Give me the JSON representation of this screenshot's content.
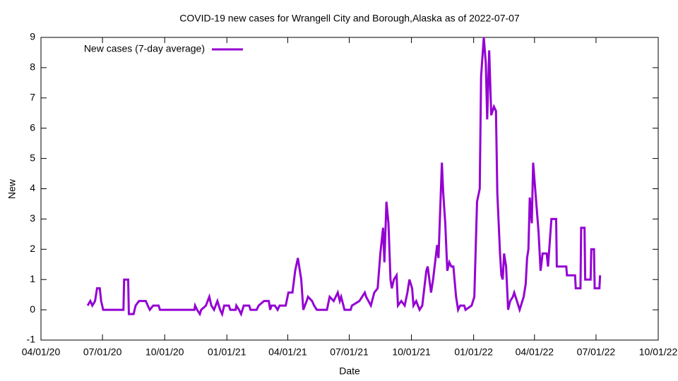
{
  "chart_data": {
    "type": "line",
    "title": "COVID-19 new cases for Wrangell City and Borough,Alaska as of 2022-07-07",
    "x_label": "Date",
    "y_label": "New",
    "legend": "top left",
    "xlim": [
      "2020-04-01",
      "2022-10-01"
    ],
    "xticks": [
      {
        "value": "2020-04-01",
        "label": "04/01/20"
      },
      {
        "value": "2020-07-01",
        "label": "07/01/20"
      },
      {
        "value": "2020-10-01",
        "label": "10/01/20"
      },
      {
        "value": "2021-01-01",
        "label": "01/01/21"
      },
      {
        "value": "2021-04-01",
        "label": "04/01/21"
      },
      {
        "value": "2021-07-01",
        "label": "07/01/21"
      },
      {
        "value": "2021-10-01",
        "label": "10/01/21"
      },
      {
        "value": "2022-01-01",
        "label": "01/01/22"
      },
      {
        "value": "2022-04-01",
        "label": "04/01/22"
      },
      {
        "value": "2022-07-01",
        "label": "07/01/22"
      },
      {
        "value": "2022-10-01",
        "label": "10/01/22"
      }
    ],
    "ylim": [
      -1,
      9
    ],
    "yticks": [
      -1,
      0,
      1,
      2,
      3,
      4,
      5,
      6,
      7,
      8,
      9
    ],
    "x": [
      "2020-06-09",
      "2020-06-13",
      "2020-06-16",
      "2020-06-20",
      "2020-06-23",
      "2020-06-27",
      "2020-06-29",
      "2020-07-02",
      "2020-08-01",
      "2020-08-02",
      "2020-08-08",
      "2020-08-09",
      "2020-08-16",
      "2020-08-19",
      "2020-08-24",
      "2020-09-03",
      "2020-09-06",
      "2020-09-09",
      "2020-09-14",
      "2020-09-22",
      "2020-09-24",
      "2020-11-14",
      "2020-11-15",
      "2020-11-18",
      "2020-11-22",
      "2020-11-24",
      "2020-12-01",
      "2020-12-06",
      "2020-12-09",
      "2020-12-13",
      "2020-12-18",
      "2020-12-22",
      "2020-12-25",
      "2020-12-28",
      "2021-01-04",
      "2021-01-06",
      "2021-01-14",
      "2021-01-15",
      "2021-01-19",
      "2021-01-22",
      "2021-01-26",
      "2021-02-03",
      "2021-02-05",
      "2021-02-14",
      "2021-02-17",
      "2021-02-25",
      "2021-03-04",
      "2021-03-06",
      "2021-03-08",
      "2021-03-13",
      "2021-03-17",
      "2021-03-20",
      "2021-03-29",
      "2021-04-02",
      "2021-04-08",
      "2021-04-12",
      "2021-04-16",
      "2021-04-21",
      "2021-04-24",
      "2021-04-29",
      "2021-05-01",
      "2021-05-07",
      "2021-05-10",
      "2021-05-14",
      "2021-05-29",
      "2021-06-02",
      "2021-06-08",
      "2021-06-14",
      "2021-06-17",
      "2021-06-19",
      "2021-06-24",
      "2021-07-03",
      "2021-07-05",
      "2021-07-16",
      "2021-07-24",
      "2021-07-26",
      "2021-08-02",
      "2021-08-07",
      "2021-08-12",
      "2021-08-16",
      "2021-08-20",
      "2021-08-22",
      "2021-08-25",
      "2021-08-28",
      "2021-08-31",
      "2021-09-02",
      "2021-09-05",
      "2021-09-09",
      "2021-09-11",
      "2021-09-16",
      "2021-09-21",
      "2021-09-25",
      "2021-09-28",
      "2021-10-02",
      "2021-10-04",
      "2021-10-08",
      "2021-10-13",
      "2021-10-17",
      "2021-10-23",
      "2021-10-25",
      "2021-10-30",
      "2021-11-02",
      "2021-11-08",
      "2021-11-10",
      "2021-11-15",
      "2021-11-17",
      "2021-11-20",
      "2021-11-23",
      "2021-11-26",
      "2021-11-29",
      "2021-12-02",
      "2021-12-06",
      "2021-12-09",
      "2021-12-12",
      "2021-12-18",
      "2021-12-20",
      "2021-12-29",
      "2022-01-02",
      "2022-01-06",
      "2022-01-10",
      "2022-01-12",
      "2022-01-16",
      "2022-01-19",
      "2022-01-21",
      "2022-01-24",
      "2022-01-27",
      "2022-01-31",
      "2022-02-03",
      "2022-02-05",
      "2022-02-09",
      "2022-02-11",
      "2022-02-13",
      "2022-02-15",
      "2022-02-18",
      "2022-02-21",
      "2022-02-24",
      "2022-02-28",
      "2022-03-02",
      "2022-03-06",
      "2022-03-10",
      "2022-03-16",
      "2022-03-19",
      "2022-03-21",
      "2022-03-23",
      "2022-03-25",
      "2022-03-28",
      "2022-03-30",
      "2022-04-02",
      "2022-04-07",
      "2022-04-10",
      "2022-04-13",
      "2022-04-19",
      "2022-04-21",
      "2022-04-26",
      "2022-05-03",
      "2022-05-04",
      "2022-05-18",
      "2022-05-19",
      "2022-05-31",
      "2022-06-01",
      "2022-06-08",
      "2022-06-09",
      "2022-06-14",
      "2022-06-15",
      "2022-06-23",
      "2022-06-24",
      "2022-06-28",
      "2022-06-29",
      "2022-07-06",
      "2022-07-07"
    ],
    "series": [
      {
        "name": "New cases (7-day average)",
        "color": "#9400d3",
        "values": [
          0.14,
          0.29,
          0.14,
          0.29,
          0.71,
          0.71,
          0.29,
          0,
          0,
          1,
          1,
          -0.14,
          -0.14,
          0.14,
          0.29,
          0.29,
          0.14,
          0,
          0.14,
          0.14,
          0,
          0,
          0.14,
          0,
          -0.14,
          0,
          0.14,
          0.43,
          0.14,
          0,
          0.29,
          0,
          -0.14,
          0.14,
          0.14,
          0,
          0,
          0.14,
          0,
          -0.14,
          0.14,
          0.14,
          0,
          0,
          0.14,
          0.29,
          0.29,
          0,
          0.14,
          0.14,
          0,
          0.14,
          0.14,
          0.57,
          0.57,
          1.29,
          1.71,
          1,
          0,
          0.29,
          0.43,
          0.29,
          0.14,
          0,
          0,
          0.43,
          0.29,
          0.57,
          0.29,
          0.43,
          0,
          0,
          0.14,
          0.29,
          0.57,
          0.43,
          0.14,
          0.57,
          0.71,
          1.86,
          2.71,
          1.57,
          3.57,
          2.86,
          1,
          0.71,
          1,
          1.14,
          0.14,
          0.29,
          0.14,
          0.57,
          1,
          0.71,
          0.14,
          0.29,
          0,
          0.14,
          1.29,
          1.43,
          0.57,
          1,
          2.14,
          1.71,
          4.86,
          3.86,
          2.86,
          1.29,
          1.57,
          1.43,
          1.43,
          0.43,
          0,
          0.14,
          0.14,
          0,
          0.14,
          0.43,
          3.57,
          4,
          7.71,
          9,
          8.14,
          6.29,
          8.57,
          6.43,
          6.71,
          6.57,
          3.86,
          1.86,
          1.14,
          1,
          1.86,
          1.43,
          0,
          0.29,
          0.43,
          0.57,
          0.29,
          0,
          0.43,
          0.86,
          1.71,
          2,
          3.71,
          2.86,
          4.86,
          4,
          2.57,
          1.29,
          1.86,
          1.86,
          1.43,
          3,
          3,
          1.43,
          1.43,
          1.14,
          1.14,
          0.71,
          0.71,
          2.71,
          2.71,
          1,
          1,
          2,
          2,
          0.71,
          0.71,
          1.14
        ]
      }
    ]
  }
}
